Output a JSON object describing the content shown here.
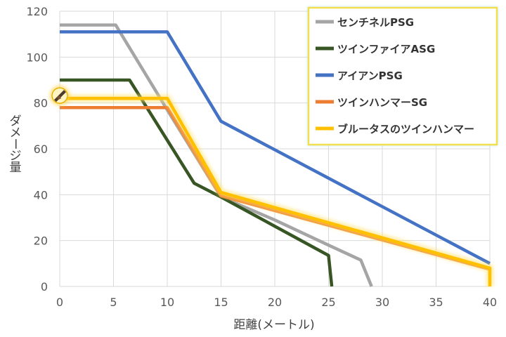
{
  "chart_data": {
    "type": "line",
    "title": "",
    "xlabel": "距離(メートル)",
    "ylabel": "ダメージ量",
    "xlim": [
      0,
      40
    ],
    "ylim": [
      0,
      120
    ],
    "x_ticks": [
      0,
      5,
      10,
      15,
      20,
      25,
      30,
      35,
      40
    ],
    "y_ticks": [
      0,
      20,
      40,
      60,
      80,
      100,
      120
    ],
    "grid": true,
    "legend_position": "top-right",
    "series": [
      {
        "name": "センチネルPSG",
        "color": "#a5a5a5",
        "glow": false,
        "points": [
          [
            0,
            114
          ],
          [
            5.2,
            114
          ],
          [
            10,
            77
          ],
          [
            15,
            39
          ],
          [
            20,
            29
          ],
          [
            25,
            18
          ],
          [
            28,
            11.5
          ],
          [
            29,
            0
          ]
        ]
      },
      {
        "name": "ツインファイアASG",
        "color": "#375623",
        "glow": false,
        "points": [
          [
            0,
            90
          ],
          [
            6.5,
            90
          ],
          [
            12.5,
            45
          ],
          [
            15,
            39
          ],
          [
            25,
            13.5
          ],
          [
            25.3,
            0
          ]
        ]
      },
      {
        "name": "アイアンPSG",
        "color": "#4472c4",
        "glow": false,
        "points": [
          [
            0,
            111
          ],
          [
            10,
            111
          ],
          [
            15,
            72
          ],
          [
            40,
            10
          ]
        ]
      },
      {
        "name": "ツインハンマーSG",
        "color": "#ed7d31",
        "glow": false,
        "points": [
          [
            0,
            78
          ],
          [
            10,
            78
          ],
          [
            15,
            39.5
          ],
          [
            40,
            7.5
          ]
        ]
      },
      {
        "name": "ブルータスのツインハンマー",
        "color": "#ffc000",
        "glow": true,
        "points": [
          [
            0,
            82
          ],
          [
            10,
            82
          ],
          [
            15,
            41
          ],
          [
            40,
            8
          ],
          [
            40,
            0
          ]
        ]
      }
    ],
    "marker_icon": "shotgun-icon"
  }
}
